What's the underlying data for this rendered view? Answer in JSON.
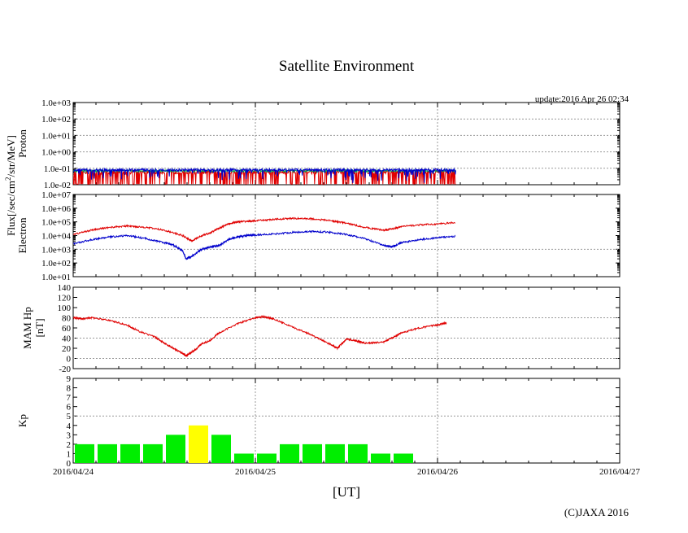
{
  "title": "Satellite Environment",
  "update": "update:2016 Apr 26 02:34",
  "copyright": "(C)JAXA 2016",
  "xlabel": "[UT]",
  "flux_unit_label": "Flux[/sec/cm",
  "flux_unit_sup": "2",
  "flux_unit_tail": "/str/MeV]",
  "x_ticks": [
    "2016/04/24",
    "2016/04/25",
    "2016/04/26",
    "2016/04/27"
  ],
  "colors": {
    "red": "#e00000",
    "blue": "#0000cc",
    "green": "#00aa55",
    "grid": "#999999",
    "kp_normal": "#00ee00",
    "kp_high": "#ffff00"
  },
  "chart_data": [
    {
      "type": "line",
      "name": "Proton",
      "ylabel": "Proton",
      "yscale": "log",
      "ylim": [
        0.01,
        1000
      ],
      "y_ticks": [
        "1.0e-02",
        "1.0e-01",
        "1.0e+00",
        "1.0e+01",
        "1.0e+02",
        "1.0e+03"
      ],
      "xlim": [
        0,
        3
      ],
      "data_end_day": 2.1,
      "grid": "dotted",
      "series": [
        {
          "name": "red",
          "base": 0.06,
          "spread": 0.5
        },
        {
          "name": "green",
          "base": 0.07,
          "spread": 0.3
        },
        {
          "name": "blue",
          "base": 0.08,
          "spread": 0.35
        }
      ]
    },
    {
      "type": "line",
      "name": "Electron",
      "ylabel": "Electron",
      "yscale": "log",
      "ylim": [
        10,
        10000000
      ],
      "y_ticks": [
        "1.0e+01",
        "1.0e+02",
        "1.0e+03",
        "1.0e+04",
        "1.0e+05",
        "1.0e+06",
        "1.0e+07"
      ],
      "xlim": [
        0,
        3
      ],
      "grid": "dotted",
      "series": [
        {
          "name": "red",
          "x": [
            0,
            0.1,
            0.2,
            0.3,
            0.4,
            0.5,
            0.6,
            0.65,
            0.7,
            0.75,
            0.8,
            0.85,
            0.9,
            0.95,
            1.0,
            1.1,
            1.2,
            1.3,
            1.4,
            1.5,
            1.6,
            1.7,
            1.75,
            1.8,
            1.9,
            2.0,
            2.1
          ],
          "y": [
            12000,
            25000,
            40000,
            50000,
            40000,
            25000,
            10000,
            4000,
            9000,
            15000,
            35000,
            70000,
            100000,
            110000,
            120000,
            150000,
            180000,
            170000,
            130000,
            80000,
            40000,
            25000,
            30000,
            45000,
            60000,
            70000,
            90000
          ]
        },
        {
          "name": "blue",
          "x": [
            0,
            0.1,
            0.2,
            0.3,
            0.4,
            0.5,
            0.55,
            0.6,
            0.62,
            0.65,
            0.7,
            0.75,
            0.8,
            0.85,
            0.9,
            0.95,
            1.0,
            1.1,
            1.2,
            1.3,
            1.4,
            1.5,
            1.6,
            1.7,
            1.75,
            1.8,
            1.9,
            2.0,
            2.1
          ],
          "y": [
            2500,
            5000,
            8000,
            10000,
            6000,
            3000,
            2000,
            800,
            200,
            300,
            900,
            1500,
            1800,
            5000,
            8000,
            10000,
            11000,
            13000,
            17000,
            20000,
            18000,
            12000,
            6000,
            2000,
            1500,
            3000,
            5000,
            7000,
            9000
          ]
        }
      ]
    },
    {
      "type": "line",
      "name": "MAM Hp",
      "ylabel": "MAM Hp",
      "ylabel2": "[nT]",
      "ylim": [
        -20,
        140
      ],
      "y_ticks": [
        "-20",
        "0",
        "20",
        "40",
        "60",
        "80",
        "100",
        "120",
        "140"
      ],
      "xlim": [
        0,
        3
      ],
      "grid": "dotted",
      "series": [
        {
          "name": "red",
          "x": [
            0,
            0.05,
            0.1,
            0.2,
            0.3,
            0.35,
            0.45,
            0.5,
            0.55,
            0.6,
            0.62,
            0.65,
            0.68,
            0.7,
            0.75,
            0.8,
            0.9,
            1.0,
            1.05,
            1.1,
            1.2,
            1.3,
            1.4,
            1.45,
            1.5,
            1.55,
            1.6,
            1.7,
            1.75,
            1.8,
            1.9,
            2.0,
            2.05
          ],
          "y": [
            80,
            78,
            80,
            75,
            65,
            55,
            42,
            30,
            20,
            10,
            5,
            12,
            20,
            28,
            35,
            50,
            68,
            80,
            82,
            78,
            62,
            48,
            30,
            20,
            38,
            35,
            30,
            32,
            40,
            50,
            60,
            66,
            70
          ]
        }
      ]
    },
    {
      "type": "bar",
      "name": "Kp",
      "ylabel": "Kp",
      "ylim": [
        0,
        9
      ],
      "y_ticks": [
        "0",
        "1",
        "2",
        "3",
        "4",
        "5",
        "6",
        "7",
        "8",
        "9"
      ],
      "xlim": [
        0,
        3
      ],
      "bar_width_days": 0.125,
      "threshold": 5,
      "values": [
        2,
        2,
        2,
        2,
        3,
        4,
        3,
        1,
        1,
        2,
        2,
        2,
        2,
        1,
        1
      ]
    }
  ]
}
